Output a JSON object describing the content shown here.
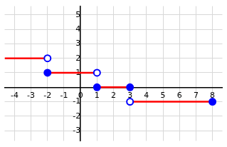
{
  "chart_data": {
    "type": "line",
    "xlim": [
      -4.6,
      8.6
    ],
    "ylim": [
      -3.7,
      5.6
    ],
    "xticks": [
      -4,
      -3,
      -2,
      -1,
      0,
      1,
      2,
      3,
      4,
      5,
      6,
      7,
      8
    ],
    "yticks": [
      -3,
      -2,
      -1,
      1,
      2,
      3,
      4,
      5
    ],
    "grid": true,
    "series": [
      {
        "type": "line",
        "color": "#ff0000",
        "line_style": "solid",
        "x": [
          -4.6,
          -2
        ],
        "values": [
          2,
          2
        ]
      },
      {
        "type": "line",
        "color": "#ff0000",
        "line_style": "solid",
        "x": [
          -2,
          1
        ],
        "values": [
          1,
          1
        ]
      },
      {
        "type": "line",
        "color": "#ff0000",
        "line_style": "solid",
        "x": [
          1,
          3
        ],
        "values": [
          0,
          0
        ]
      },
      {
        "type": "line",
        "color": "#ff0000",
        "line_style": "solid",
        "x": [
          3,
          8
        ],
        "values": [
          -1,
          -1
        ]
      },
      {
        "type": "scatter",
        "color": "#0000ff",
        "marker": "open",
        "x": [
          -2,
          1,
          3
        ],
        "values": [
          2,
          1,
          -1
        ]
      },
      {
        "type": "scatter",
        "color": "#0000ff",
        "marker": "closed",
        "x": [
          -2,
          1,
          3,
          8
        ],
        "values": [
          1,
          0,
          0,
          -1
        ]
      }
    ]
  }
}
